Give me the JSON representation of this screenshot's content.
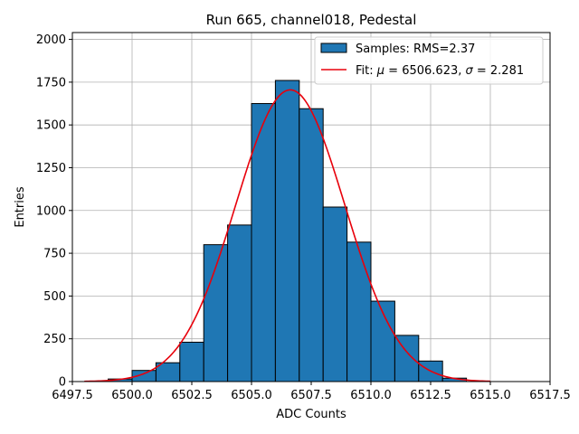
{
  "chart_data": {
    "type": "bar",
    "title": "Run 665, channel018, Pedestal",
    "xlabel": "ADC Counts",
    "ylabel": "Entries",
    "xlim": [
      6497.5,
      6517.5
    ],
    "ylim": [
      0,
      2040
    ],
    "grid": true,
    "legend_position": "top-right",
    "x_ticks": [
      6497.5,
      6500.0,
      6502.5,
      6505.0,
      6507.5,
      6510.0,
      6512.5,
      6515.0,
      6517.5
    ],
    "x_tick_labels": [
      "6497.5",
      "6500.0",
      "6502.5",
      "6505.0",
      "6507.5",
      "6510.0",
      "6512.5",
      "6515.0",
      "6517.5"
    ],
    "y_ticks": [
      0,
      250,
      500,
      750,
      1000,
      1250,
      1500,
      1750,
      2000
    ],
    "y_tick_labels": [
      "0",
      "250",
      "500",
      "750",
      "1000",
      "1250",
      "1500",
      "1750",
      "2000"
    ],
    "histogram": {
      "name": "Samples: RMS=2.37",
      "color": "#1f77b4",
      "edgecolor": "#000000",
      "bins": [
        {
          "start": 6499,
          "end": 6500,
          "count": 15
        },
        {
          "start": 6500,
          "end": 6501,
          "count": 65
        },
        {
          "start": 6501,
          "end": 6502,
          "count": 110
        },
        {
          "start": 6502,
          "end": 6503,
          "count": 230
        },
        {
          "start": 6503,
          "end": 6504,
          "count": 800
        },
        {
          "start": 6504,
          "end": 6505,
          "count": 915
        },
        {
          "start": 6505,
          "end": 6506,
          "count": 1625
        },
        {
          "start": 6506,
          "end": 6507,
          "count": 1760
        },
        {
          "start": 6507,
          "end": 6508,
          "count": 1595
        },
        {
          "start": 6508,
          "end": 6509,
          "count": 1020
        },
        {
          "start": 6509,
          "end": 6510,
          "count": 815
        },
        {
          "start": 6510,
          "end": 6511,
          "count": 470
        },
        {
          "start": 6511,
          "end": 6512,
          "count": 270
        },
        {
          "start": 6512,
          "end": 6513,
          "count": 120
        },
        {
          "start": 6513,
          "end": 6514,
          "count": 20
        }
      ]
    },
    "fit": {
      "name_prefix": "Fit: ",
      "mu_symbol": "μ",
      "mu_text": " = 6506.623, ",
      "sigma_symbol": "σ",
      "sigma_text": " = 2.281",
      "mu": 6506.623,
      "sigma": 2.281,
      "amplitude": 1705,
      "x_range": [
        6498,
        6515
      ],
      "color": "#e8000b"
    }
  }
}
